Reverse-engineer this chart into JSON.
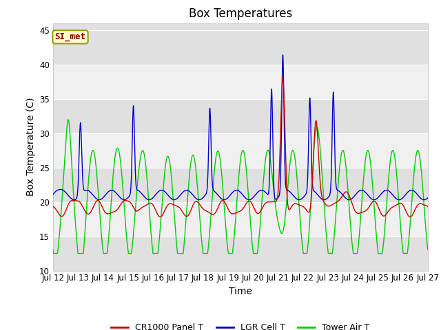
{
  "title": "Box Temperatures",
  "xlabel": "Time",
  "ylabel": "Box Temperature (C)",
  "ylim": [
    10,
    46
  ],
  "yticks": [
    10,
    15,
    20,
    25,
    30,
    35,
    40,
    45
  ],
  "xtick_labels": [
    "Jul 12",
    "Jul 13",
    "Jul 14",
    "Jul 15",
    "Jul 16",
    "Jul 17",
    "Jul 18",
    "Jul 19",
    "Jul 20",
    "Jul 21",
    "Jul 22",
    "Jul 23",
    "Jul 24",
    "Jul 25",
    "Jul 26",
    "Jul 27"
  ],
  "legend": [
    "CR1000 Panel T",
    "LGR Cell T",
    "Tower Air T"
  ],
  "line_colors": [
    "#cc0000",
    "#0000cc",
    "#00cc00"
  ],
  "annotation_text": "SI_met",
  "annotation_box_facecolor": "#ffffcc",
  "annotation_box_edgecolor": "#999900",
  "annotation_text_color": "#880000",
  "background_color": "#ffffff",
  "plot_bg_light": "#f0f0f0",
  "plot_bg_dark": "#e0e0e0",
  "title_fontsize": 12,
  "axis_label_fontsize": 10,
  "tick_fontsize": 8.5
}
